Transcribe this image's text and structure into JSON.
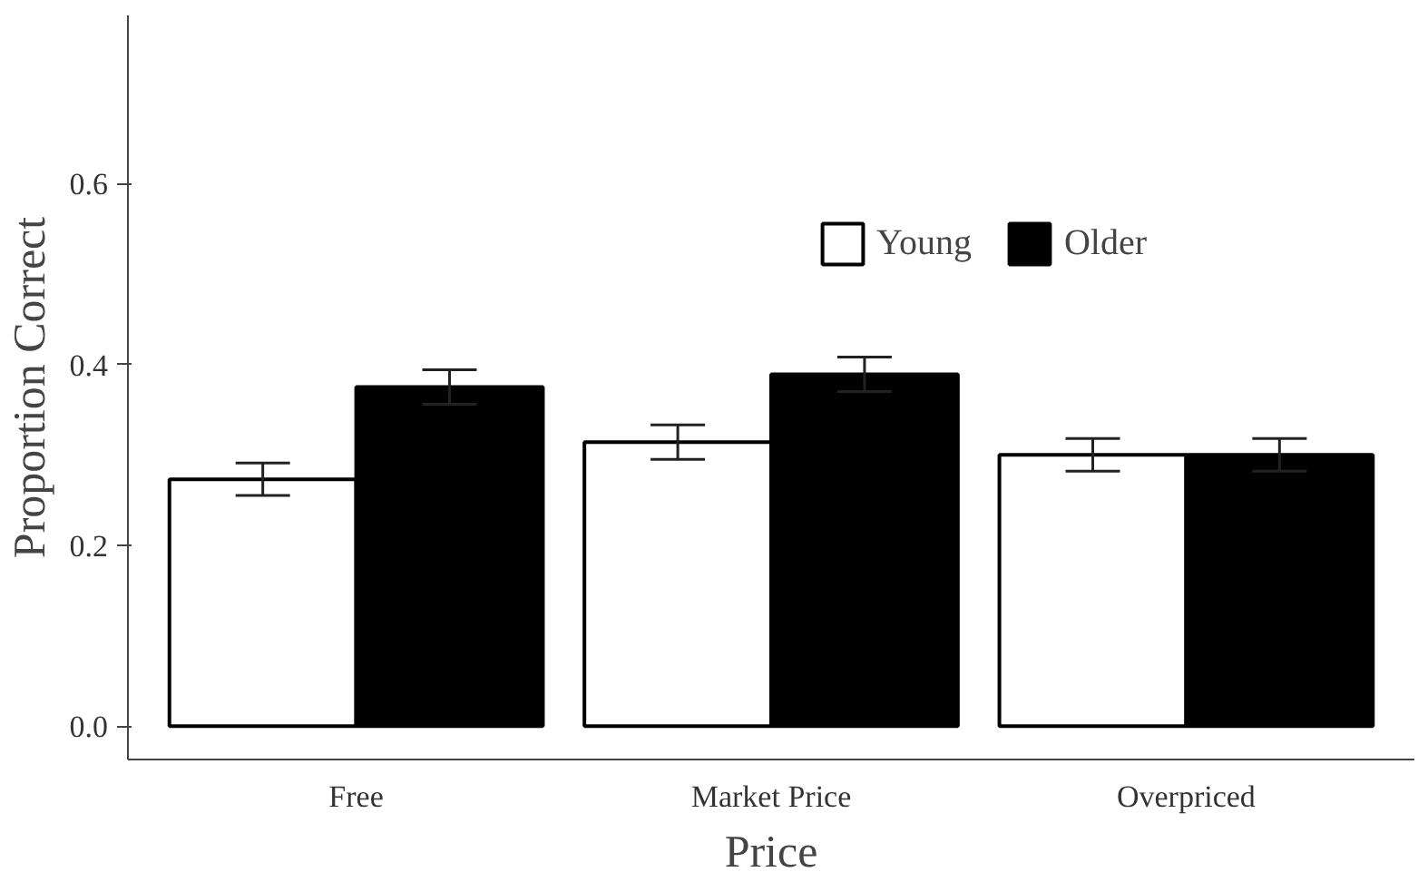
{
  "chart_data": {
    "type": "bar",
    "xlabel": "Price",
    "ylabel": "Proportion Correct",
    "categories": [
      "Free",
      "Market Price",
      "Overpriced"
    ],
    "series": [
      {
        "name": "Young",
        "color": "#ffffff",
        "values": [
          0.273,
          0.314,
          0.3
        ],
        "errors": [
          0.018,
          0.019,
          0.018
        ]
      },
      {
        "name": "Older",
        "color": "#000000",
        "values": [
          0.375,
          0.389,
          0.3
        ],
        "errors": [
          0.019,
          0.019,
          0.018
        ]
      }
    ],
    "ylim": [
      -0.037,
      0.786
    ],
    "yticks": [
      {
        "value": 0,
        "label": "0.0"
      },
      0.2,
      0.4,
      0.6
    ],
    "grid": false,
    "legend": "top"
  }
}
